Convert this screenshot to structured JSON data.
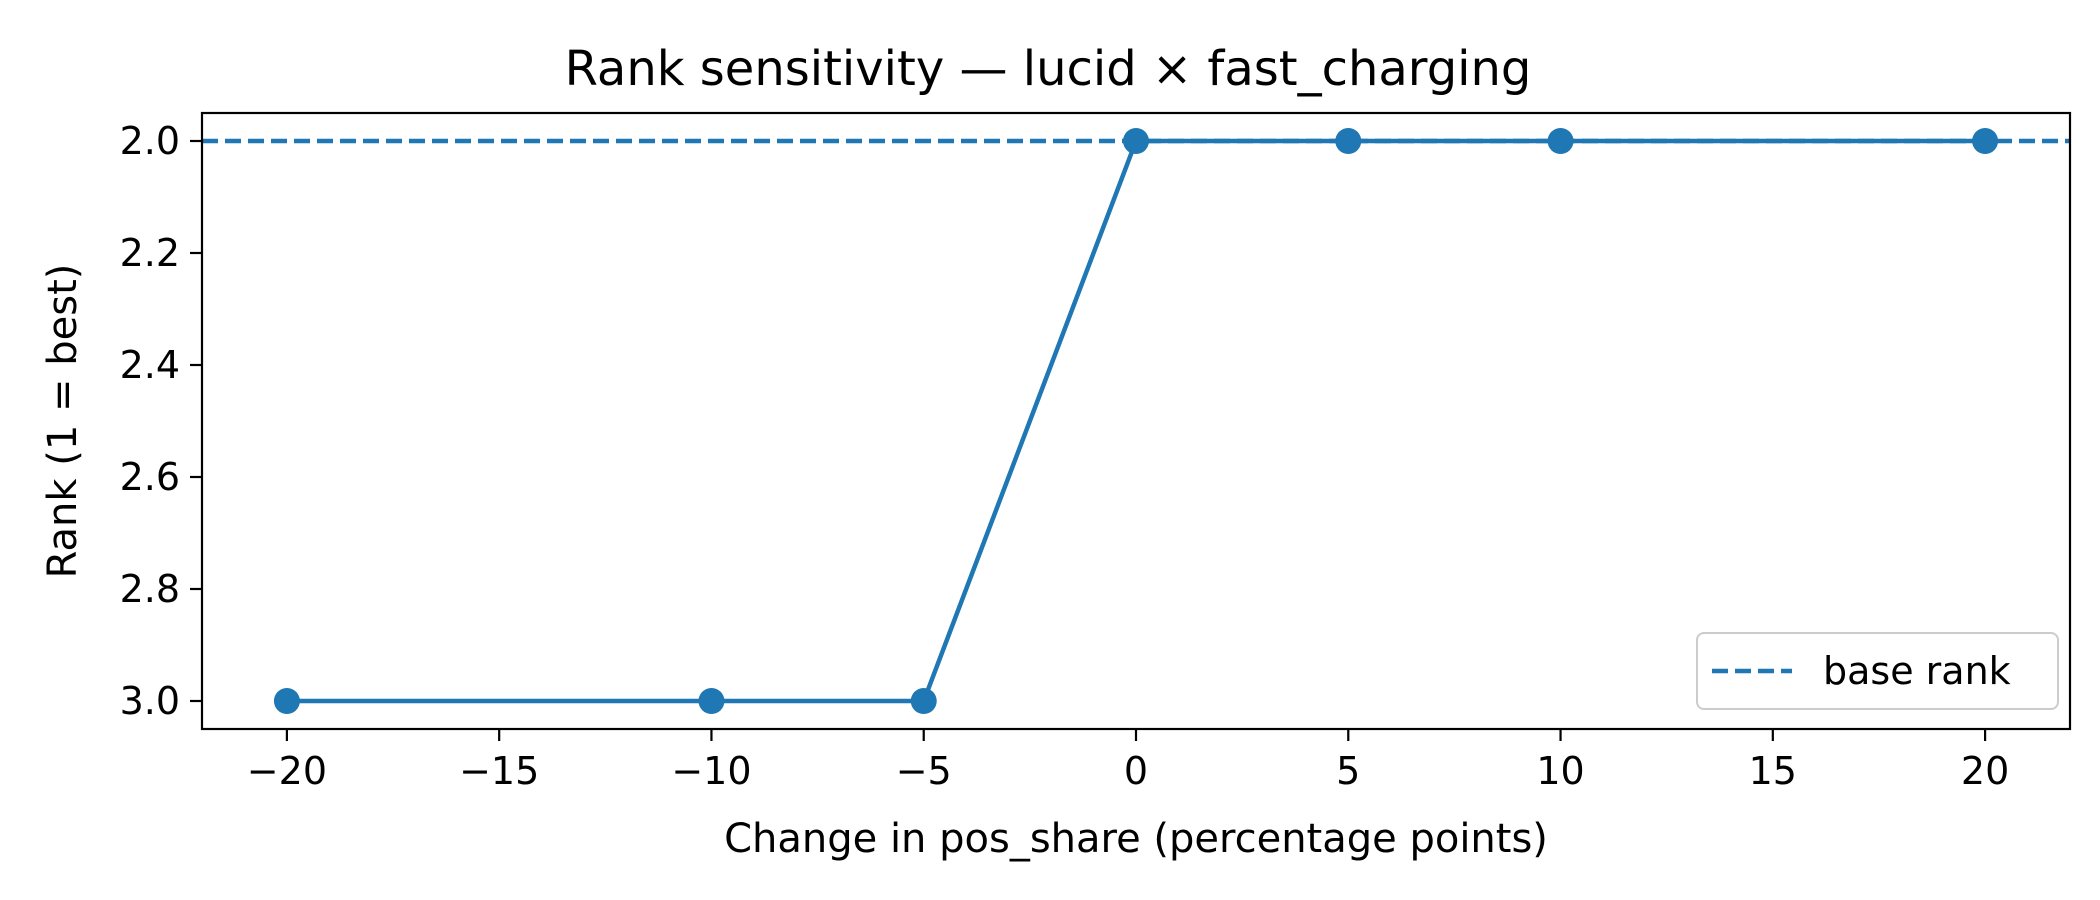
{
  "chart_data": {
    "type": "line",
    "title": "Rank sensitivity — lucid × fast_charging",
    "xlabel": "Change in pos_share (percentage points)",
    "ylabel": "Rank (1 = best)",
    "xlim": [
      -22,
      22
    ],
    "ylim": [
      3.05,
      1.95
    ],
    "y_inverted": true,
    "xticks": [
      -20,
      -15,
      -10,
      -5,
      0,
      5,
      10,
      15,
      20
    ],
    "xtick_labels": [
      "−20",
      "−15",
      "−10",
      "−5",
      "0",
      "5",
      "10",
      "15",
      "20"
    ],
    "yticks": [
      2.0,
      2.2,
      2.4,
      2.6,
      2.8,
      3.0
    ],
    "ytick_labels": [
      "2.0",
      "2.2",
      "2.4",
      "2.6",
      "2.8",
      "3.0"
    ],
    "series": [
      {
        "x": [
          -20,
          -10,
          -5,
          0,
          5,
          10,
          20
        ],
        "y": [
          3,
          3,
          3,
          2,
          2,
          2,
          2
        ],
        "color": "#1f77b4",
        "marker": "circle"
      }
    ],
    "reference_lines": [
      {
        "name": "base rank",
        "y": 2,
        "style": "dashed",
        "color": "#1f77b4"
      }
    ],
    "legend": {
      "position": "bottom-right",
      "entries": [
        "base rank"
      ]
    },
    "grid": false
  }
}
